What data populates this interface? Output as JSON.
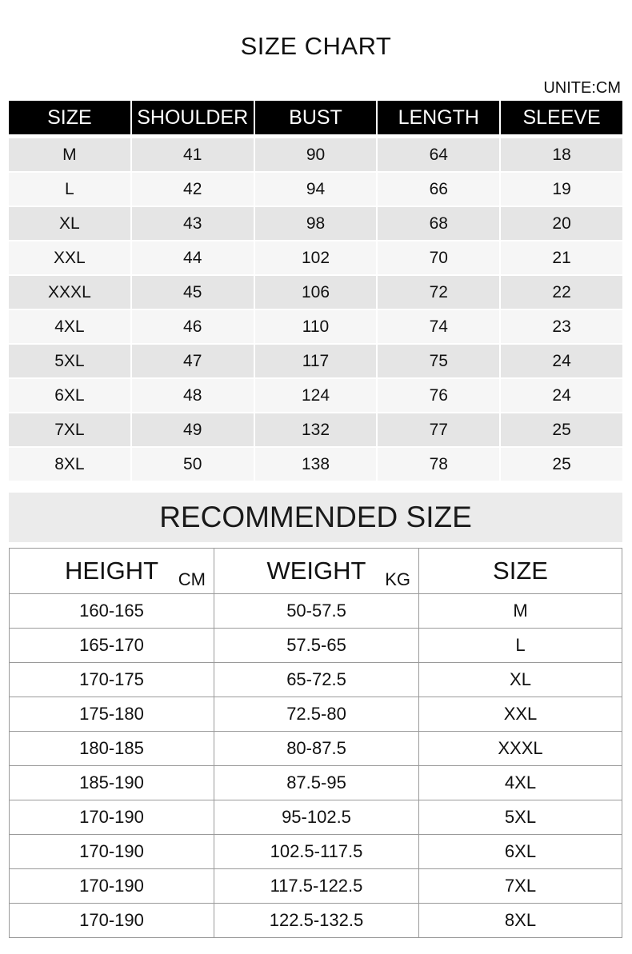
{
  "size_chart": {
    "title": "SIZE CHART",
    "unit": "UNITE:CM",
    "headers": [
      "SIZE",
      "SHOULDER",
      "BUST",
      "LENGTH",
      "SLEEVE"
    ],
    "rows": [
      [
        "M",
        "41",
        "90",
        "64",
        "18"
      ],
      [
        "L",
        "42",
        "94",
        "66",
        "19"
      ],
      [
        "XL",
        "43",
        "98",
        "68",
        "20"
      ],
      [
        "XXL",
        "44",
        "102",
        "70",
        "21"
      ],
      [
        "XXXL",
        "45",
        "106",
        "72",
        "22"
      ],
      [
        "4XL",
        "46",
        "110",
        "74",
        "23"
      ],
      [
        "5XL",
        "47",
        "117",
        "75",
        "24"
      ],
      [
        "6XL",
        "48",
        "124",
        "76",
        "24"
      ],
      [
        "7XL",
        "49",
        "132",
        "77",
        "25"
      ],
      [
        "8XL",
        "50",
        "138",
        "78",
        "25"
      ]
    ]
  },
  "recommended": {
    "title": "RECOMMENDED SIZE",
    "headers": [
      {
        "label": "HEIGHT",
        "unit": "CM"
      },
      {
        "label": "WEIGHT",
        "unit": "KG"
      },
      {
        "label": "SIZE",
        "unit": ""
      }
    ],
    "rows": [
      [
        "160-165",
        "50-57.5",
        "M"
      ],
      [
        "165-170",
        "57.5-65",
        "L"
      ],
      [
        "170-175",
        "65-72.5",
        "XL"
      ],
      [
        "175-180",
        "72.5-80",
        "XXL"
      ],
      [
        "180-185",
        "80-87.5",
        "XXXL"
      ],
      [
        "185-190",
        "87.5-95",
        "4XL"
      ],
      [
        "170-190",
        "95-102.5",
        "5XL"
      ],
      [
        "170-190",
        "102.5-117.5",
        "6XL"
      ],
      [
        "170-190",
        "117.5-122.5",
        "7XL"
      ],
      [
        "170-190",
        "122.5-132.5",
        "8XL"
      ]
    ]
  }
}
